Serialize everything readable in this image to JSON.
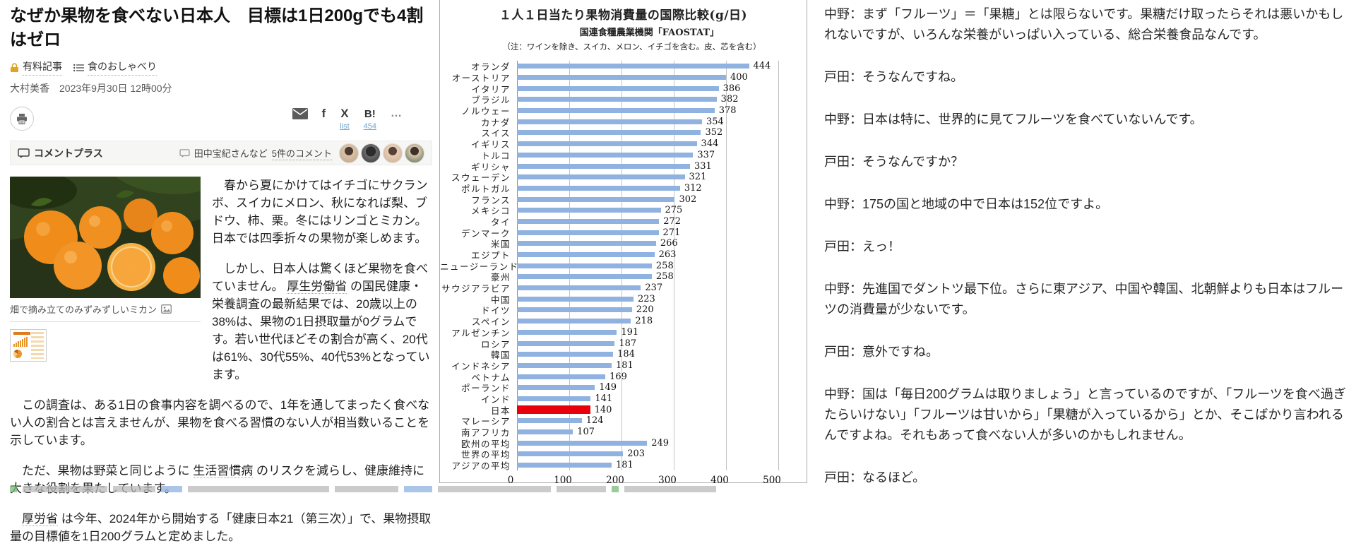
{
  "article": {
    "title": "なぜか果物を食べない日本人　目標は1日200gでも4割はゼロ",
    "tags": {
      "paid": "有料記事",
      "category": "食のおしゃべり"
    },
    "byline": {
      "author": "大村美香",
      "date": "2023年9月30日 12時00分"
    },
    "share": {
      "list_link": "list",
      "count_link": "454",
      "hatena_label": "B!",
      "more_label": "…",
      "facebook_glyph": "f",
      "x_glyph": "X"
    },
    "comment_bar": {
      "title": "コメントプラス",
      "comments_prefix": "田中宝紀さんなど",
      "comments_link": "5件のコメント"
    },
    "photo": {
      "caption": "畑で摘み立てのみずみずしいミカン"
    },
    "paragraphs": {
      "p1": "　春から夏にかけてはイチゴにサクランボ、スイカにメロン、秋になれば梨、ブドウ、柿、栗。冬にはリンゴとミカン。日本では四季折々の果物が楽しめます。",
      "p2_pre": "　しかし、日本人は驚くほど果物を食べていません。 ",
      "p2_link": "厚生労働省",
      "p2_post": " の国民健康・栄養調査の最新結果では、20歳以上の38%は、果物の1日摂取量が0グラムです。若い世代ほどその割合が高く、20代は61%、30代55%、40代53%となっています。",
      "p3": "　この調査は、ある1日の食事内容を調べるので、1年を通してまったく食べない人の割合とは言えませんが、果物を食べる習慣のない人が相当数いることを示しています。",
      "p4_pre": "　ただ、果物は野菜と同じように ",
      "p4_link": "生活習慣病",
      "p4_post": " のリスクを減らし、健康維持に大きな役割を果たしています。",
      "p5_pre": "　",
      "p5_link": "厚労省",
      "p5_post": " は今年、2024年から開始する「健康日本21（第三次）」で、果物摂取量の目標値を1日200グラムと定めました。"
    }
  },
  "chart_data": {
    "type": "bar",
    "orientation": "horizontal",
    "title": "１人１日当たり果物消費量の国際比較(g/日)",
    "subtitle": "国連食糧農業機関「FAOSTAT」",
    "note": "（注：ワインを除き、スイカ、メロン、イチゴを含む。皮、芯を含む）",
    "categories": [
      "オランダ",
      "オーストリア",
      "イタリア",
      "ブラジル",
      "ノルウェー",
      "カナダ",
      "スイス",
      "イギリス",
      "トルコ",
      "ギリシャ",
      "スウェーデン",
      "ポルトガル",
      "フランス",
      "メキシコ",
      "タイ",
      "デンマーク",
      "米国",
      "エジプト",
      "ニュージーランド",
      "豪州",
      "サウジアラビア",
      "中国",
      "ドイツ",
      "スペイン",
      "アルゼンチン",
      "ロシア",
      "韓国",
      "インドネシア",
      "ベトナム",
      "ポーランド",
      "インド",
      "日本",
      "マレーシア",
      "南アフリカ",
      "欧州の平均",
      "世界の平均",
      "アジアの平均"
    ],
    "values": [
      444,
      400,
      386,
      382,
      378,
      354,
      352,
      344,
      337,
      331,
      321,
      312,
      302,
      275,
      272,
      271,
      266,
      263,
      258,
      258,
      237,
      223,
      220,
      218,
      191,
      187,
      184,
      181,
      169,
      149,
      141,
      140,
      124,
      107,
      249,
      203,
      181
    ],
    "highlight_category": "日本",
    "xlabel": "",
    "ylabel": "",
    "xlim": [
      0,
      500
    ],
    "x_ticks": [
      0,
      100,
      200,
      300,
      400,
      500
    ],
    "grid": true,
    "bar_color": "#8fb2e0",
    "highlight_color": "#e8000b"
  },
  "interview": {
    "paragraphs": [
      "中野：まず「フルーツ」＝「果糖」とは限らないです。果糖だけ取ったらそれは悪いかもしれないですが、いろんな栄養がいっぱい入っている、総合栄養食品なんです。",
      "戸田：そうなんですね。",
      "中野：日本は特に、世界的に見てフルーツを食べていないんです。",
      "戸田：そうなんですか？",
      "中野：175の国と地域の中で日本は152位ですよ。",
      "戸田：えっ！",
      "中野：先進国でダントツ最下位。さらに東アジア、中国や韓国、北朝鮮よりも日本はフルーツの消費量が少ないです。",
      "戸田：意外ですね。",
      "中野：国は「毎日200グラムは取りましょう」と言っているのですが、「フルーツを食べ過ぎたらいけない」「フルーツは甘いから」「果糖が入っているから」とか、そこばかり言われるんですよね。それもあって食べない人が多いのかもしれません。",
      "戸田：なるほど。"
    ]
  }
}
